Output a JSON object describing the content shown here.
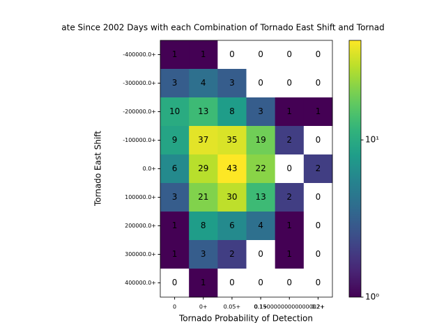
{
  "chart_data": {
    "type": "heatmap",
    "title": "ate Since 2002 Days with each Combination of Tornado East Shift and Tornad",
    "x_label": "Tornado Probability of Detection",
    "y_label": "Tornado East Shift",
    "categories": [
      "0",
      "0+",
      "0.05+",
      "0.1+",
      "0.15000000000000002+",
      "0.2+"
    ],
    "rows": [
      "-400000.0+",
      "-300000.0+",
      "-200000.0+",
      "-100000.0+",
      "0.0+",
      "100000.0+",
      "200000.0+",
      "300000.0+",
      "400000.0+"
    ],
    "values": [
      [
        1,
        1,
        0,
        0,
        0,
        0
      ],
      [
        3,
        4,
        3,
        0,
        0,
        0
      ],
      [
        10,
        13,
        8,
        3,
        1,
        1
      ],
      [
        9,
        37,
        35,
        19,
        2,
        0
      ],
      [
        6,
        29,
        43,
        22,
        0,
        2
      ],
      [
        3,
        21,
        30,
        13,
        2,
        0
      ],
      [
        1,
        8,
        6,
        4,
        1,
        0
      ],
      [
        1,
        3,
        2,
        0,
        1,
        0
      ],
      [
        0,
        1,
        0,
        0,
        0,
        0
      ]
    ],
    "colormap": "viridis",
    "color_scale": "log",
    "clim": [
      1,
      43
    ],
    "cticks": [
      {
        "value": 1,
        "label": "10⁰"
      },
      {
        "value": 10,
        "label": "10¹"
      }
    ]
  }
}
